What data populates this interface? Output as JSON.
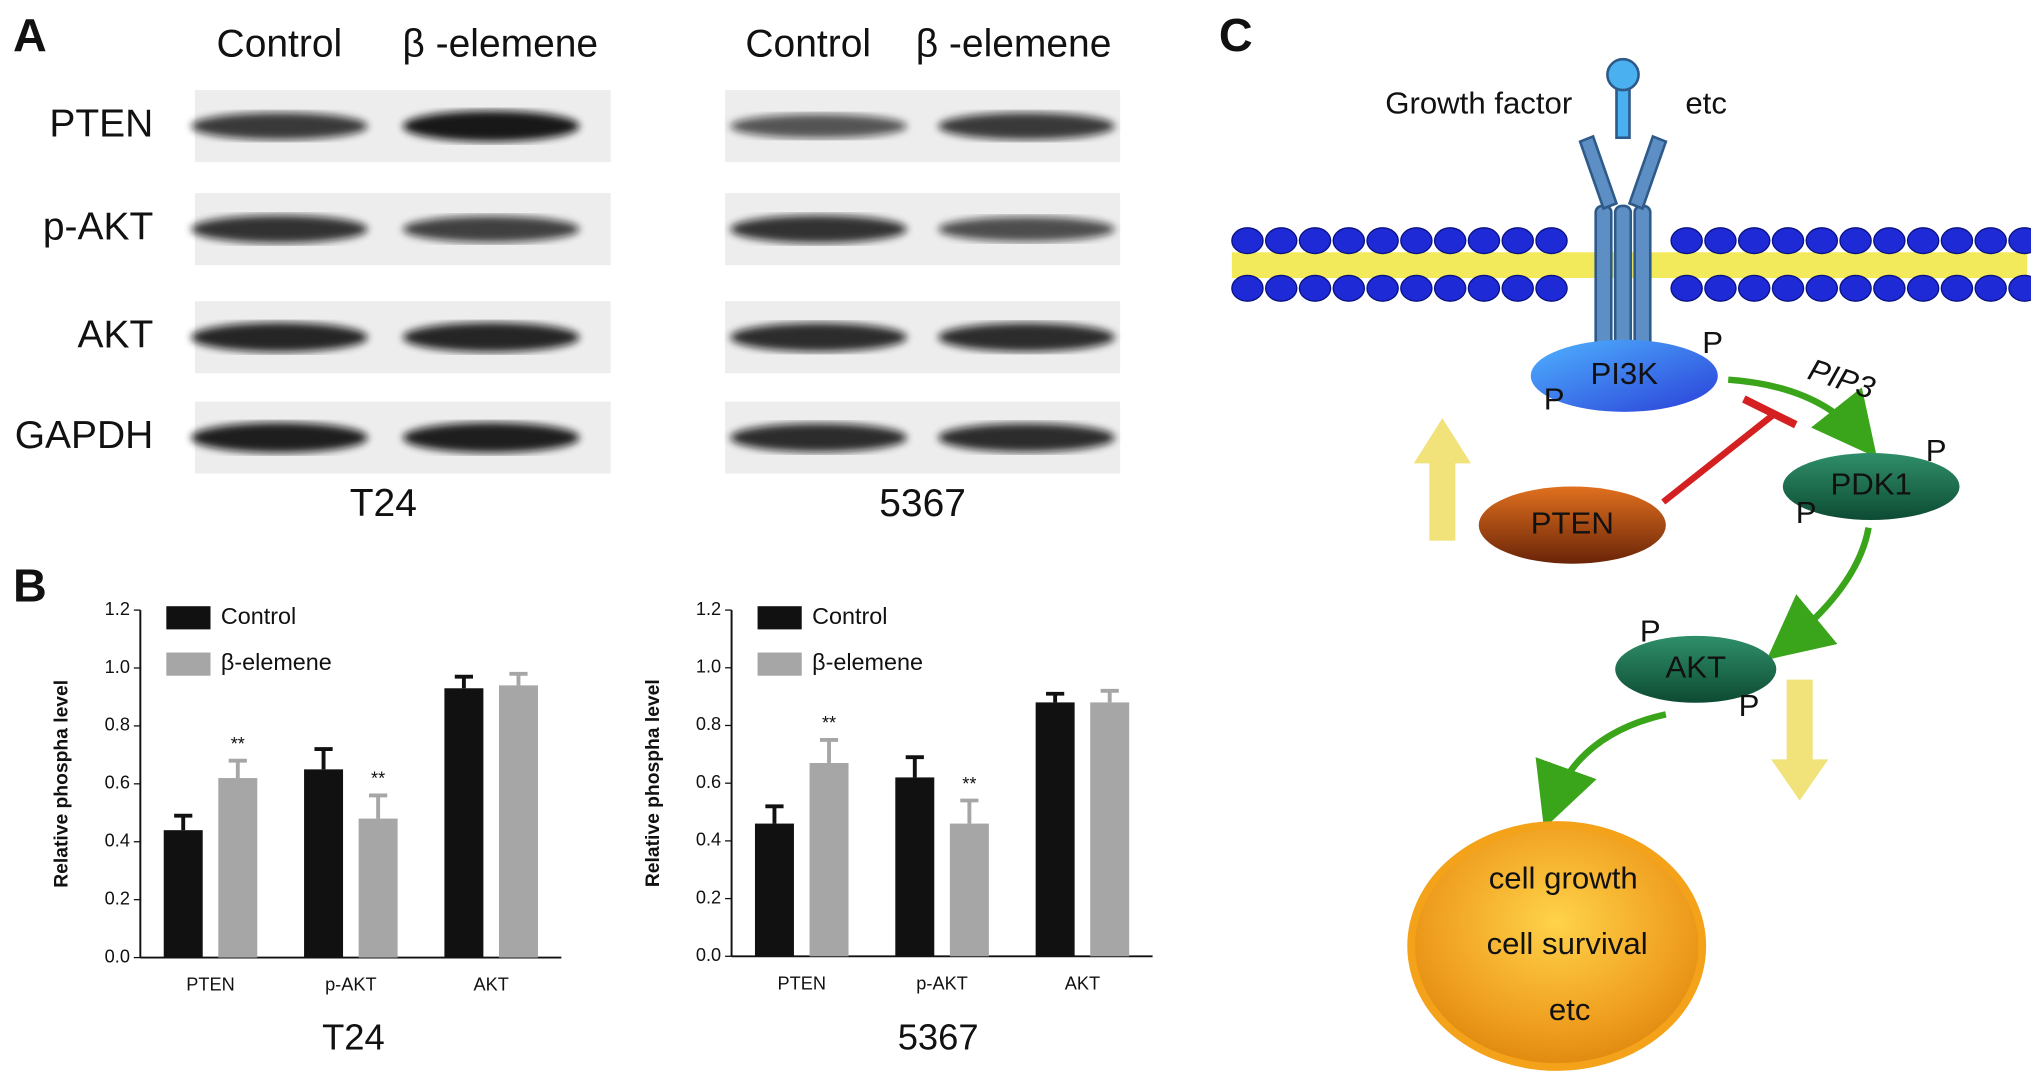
{
  "panel_a": {
    "label": "A",
    "blots": [
      {
        "cell_line": "T24",
        "columns": [
          "Control",
          "β -elemene"
        ],
        "rows": [
          "PTEN",
          "p-AKT",
          "AKT",
          "GAPDH"
        ]
      },
      {
        "cell_line": "5367",
        "columns": [
          "Control",
          "β -elemene"
        ]
      }
    ]
  },
  "panel_b": {
    "label": "B"
  },
  "chart_data": [
    {
      "type": "bar",
      "xlabel": "T24",
      "ylabel": "Relative phospha level",
      "categories": [
        "PTEN",
        "p-AKT",
        "AKT"
      ],
      "series": [
        {
          "name": "Control",
          "color": "#111111",
          "values": [
            0.44,
            0.65,
            0.93
          ],
          "errors": [
            0.05,
            0.07,
            0.04
          ]
        },
        {
          "name": "β-elemene",
          "color": "#a6a6a6",
          "values": [
            0.62,
            0.48,
            0.94
          ],
          "errors": [
            0.06,
            0.08,
            0.04
          ],
          "significance": [
            "**",
            "**",
            null
          ]
        }
      ],
      "ylim": [
        0,
        1.2
      ],
      "yticks": [
        {
          "value": 0,
          "label": "0.0"
        },
        0.2,
        0.4,
        0.6,
        0.8,
        {
          "value": 1,
          "label": "1.0"
        },
        1.2
      ],
      "legend": "top-left"
    },
    {
      "type": "bar",
      "xlabel": "5367",
      "ylabel": "Relative phospha level",
      "categories": [
        "PTEN",
        "p-AKT",
        "AKT"
      ],
      "series": [
        {
          "name": "Control",
          "color": "#111111",
          "values": [
            0.46,
            0.62,
            0.88
          ],
          "errors": [
            0.06,
            0.07,
            0.03
          ]
        },
        {
          "name": "β-elemene",
          "color": "#a6a6a6",
          "values": [
            0.67,
            0.46,
            0.88
          ],
          "errors": [
            0.08,
            0.08,
            0.04
          ],
          "significance": [
            "**",
            "**",
            null
          ]
        }
      ],
      "ylim": [
        0,
        1.2
      ],
      "yticks": [
        {
          "value": 0,
          "label": "0.0"
        },
        0.2,
        0.4,
        0.6,
        0.8,
        {
          "value": 1,
          "label": "1.0"
        },
        1.2
      ],
      "legend": "top-left"
    }
  ],
  "panel_c": {
    "label": "C",
    "growth_factor": "Growth factor",
    "etc_top": "etc",
    "pi3k": "PI3K",
    "pip3": "PIP3",
    "pten": "PTEN",
    "pdk1": "PDK1",
    "akt": "AKT",
    "phospho": "P",
    "outcomes": [
      "cell growth",
      "cell survival",
      "etc"
    ]
  }
}
